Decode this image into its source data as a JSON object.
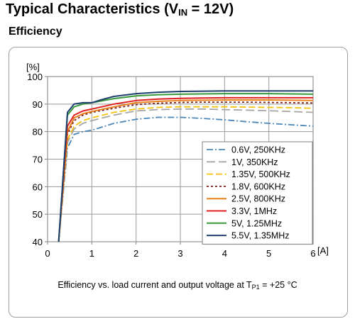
{
  "header": {
    "title_prefix": "Typical Characteristics (V",
    "title_sub": "IN",
    "title_suffix": " = 12V)",
    "section": "Efficiency"
  },
  "caption": {
    "prefix": "Efficiency vs. load current and output voltage at T",
    "sub": "P1",
    "suffix": " = +25 °C"
  },
  "chart_data": {
    "type": "line",
    "title": "",
    "xlabel": "[A]",
    "ylabel": "[%]",
    "xlim": [
      0,
      6
    ],
    "ylim": [
      40,
      100
    ],
    "xticks": [
      0,
      1,
      2,
      3,
      4,
      5,
      6
    ],
    "yticks": [
      40,
      50,
      60,
      70,
      80,
      90,
      100
    ],
    "grid": true,
    "legend_position": "bottom-right",
    "series": [
      {
        "name": "0.6V, 250KHz",
        "color": "#4a86b8",
        "dash": "dashdot",
        "points": [
          [
            0.25,
            40
          ],
          [
            0.45,
            74
          ],
          [
            0.6,
            79
          ],
          [
            0.8,
            80
          ],
          [
            1,
            80.5
          ],
          [
            1.5,
            83
          ],
          [
            2,
            84.5
          ],
          [
            2.5,
            85.2
          ],
          [
            3,
            85.2
          ],
          [
            3.5,
            84.8
          ],
          [
            4,
            84.3
          ],
          [
            4.5,
            83.6
          ],
          [
            5,
            83
          ],
          [
            5.5,
            82.5
          ],
          [
            6,
            82
          ]
        ]
      },
      {
        "name": "1V, 350KHz",
        "color": "#a6a6a6",
        "dash": "longdash",
        "points": [
          [
            0.25,
            40
          ],
          [
            0.45,
            76
          ],
          [
            0.6,
            81
          ],
          [
            0.8,
            83
          ],
          [
            1,
            84
          ],
          [
            1.5,
            86
          ],
          [
            2,
            87.5
          ],
          [
            2.5,
            88
          ],
          [
            3,
            88.2
          ],
          [
            3.5,
            88.2
          ],
          [
            4,
            88
          ],
          [
            4.5,
            87.8
          ],
          [
            5,
            87.6
          ],
          [
            5.5,
            87.3
          ],
          [
            6,
            87
          ]
        ]
      },
      {
        "name": "1.35V, 500KHz",
        "color": "#f4c20d",
        "dash": "dash",
        "points": [
          [
            0.25,
            40
          ],
          [
            0.45,
            77
          ],
          [
            0.6,
            82
          ],
          [
            0.8,
            84
          ],
          [
            1,
            85
          ],
          [
            1.5,
            87
          ],
          [
            2,
            88.2
          ],
          [
            2.5,
            88.8
          ],
          [
            3,
            89
          ],
          [
            3.5,
            89
          ],
          [
            4,
            89
          ],
          [
            4.5,
            88.9
          ],
          [
            5,
            88.8
          ],
          [
            5.5,
            88.7
          ],
          [
            6,
            88.5
          ]
        ]
      },
      {
        "name": "1.8V, 600KHz",
        "color": "#7a1f1f",
        "dash": "dot",
        "points": [
          [
            0.25,
            40
          ],
          [
            0.45,
            79
          ],
          [
            0.6,
            84
          ],
          [
            0.8,
            86
          ],
          [
            1,
            87
          ],
          [
            1.5,
            88.5
          ],
          [
            2,
            89.8
          ],
          [
            2.5,
            90.3
          ],
          [
            3,
            90.6
          ],
          [
            3.5,
            90.7
          ],
          [
            4,
            90.7
          ],
          [
            4.5,
            90.7
          ],
          [
            5,
            90.6
          ],
          [
            5.5,
            90.5
          ],
          [
            6,
            90.4
          ]
        ]
      },
      {
        "name": "2.5V, 800KHz",
        "color": "#e8801c",
        "dash": "solid",
        "points": [
          [
            0.25,
            40
          ],
          [
            0.45,
            80
          ],
          [
            0.6,
            85
          ],
          [
            0.8,
            86.5
          ],
          [
            1,
            87.3
          ],
          [
            1.5,
            89
          ],
          [
            2,
            90.5
          ],
          [
            2.5,
            91
          ],
          [
            3,
            91.3
          ],
          [
            3.5,
            91.4
          ],
          [
            4,
            91.5
          ],
          [
            4.5,
            91.5
          ],
          [
            5,
            91.5
          ],
          [
            5.5,
            91.4
          ],
          [
            6,
            91.3
          ]
        ]
      },
      {
        "name": "3.3V, 1MHz",
        "color": "#e02020",
        "dash": "solid",
        "points": [
          [
            0.25,
            40
          ],
          [
            0.45,
            82
          ],
          [
            0.6,
            86
          ],
          [
            0.8,
            87.5
          ],
          [
            1,
            88.2
          ],
          [
            1.5,
            90
          ],
          [
            2,
            91.3
          ],
          [
            2.5,
            91.8
          ],
          [
            3,
            92.1
          ],
          [
            3.5,
            92.2
          ],
          [
            4,
            92.3
          ],
          [
            4.5,
            92.3
          ],
          [
            5,
            92.3
          ],
          [
            5.5,
            92.3
          ],
          [
            6,
            92.3
          ]
        ]
      },
      {
        "name": "5V, 1.25MHz",
        "color": "#3a9a3a",
        "dash": "solid",
        "points": [
          [
            0.25,
            40
          ],
          [
            0.45,
            86
          ],
          [
            0.6,
            89
          ],
          [
            0.8,
            90
          ],
          [
            1,
            90.5
          ],
          [
            1.5,
            92
          ],
          [
            2,
            93
          ],
          [
            2.5,
            93.4
          ],
          [
            3,
            93.6
          ],
          [
            3.5,
            93.7
          ],
          [
            4,
            93.8
          ],
          [
            4.5,
            93.8
          ],
          [
            5,
            93.8
          ],
          [
            5.5,
            93.7
          ],
          [
            6,
            93.6
          ]
        ]
      },
      {
        "name": "5.5V, 1.35MHz",
        "color": "#1f3f6e",
        "dash": "solid",
        "points": [
          [
            0.25,
            40
          ],
          [
            0.45,
            87
          ],
          [
            0.6,
            90
          ],
          [
            0.8,
            90.5
          ],
          [
            1,
            90.5
          ],
          [
            1.2,
            91.5
          ],
          [
            1.5,
            92.8
          ],
          [
            2,
            93.8
          ],
          [
            2.5,
            94.3
          ],
          [
            3,
            94.6
          ],
          [
            3.5,
            94.7
          ],
          [
            4,
            94.8
          ],
          [
            4.5,
            94.8
          ],
          [
            5,
            94.8
          ],
          [
            5.5,
            94.8
          ],
          [
            6,
            94.8
          ]
        ]
      }
    ]
  }
}
